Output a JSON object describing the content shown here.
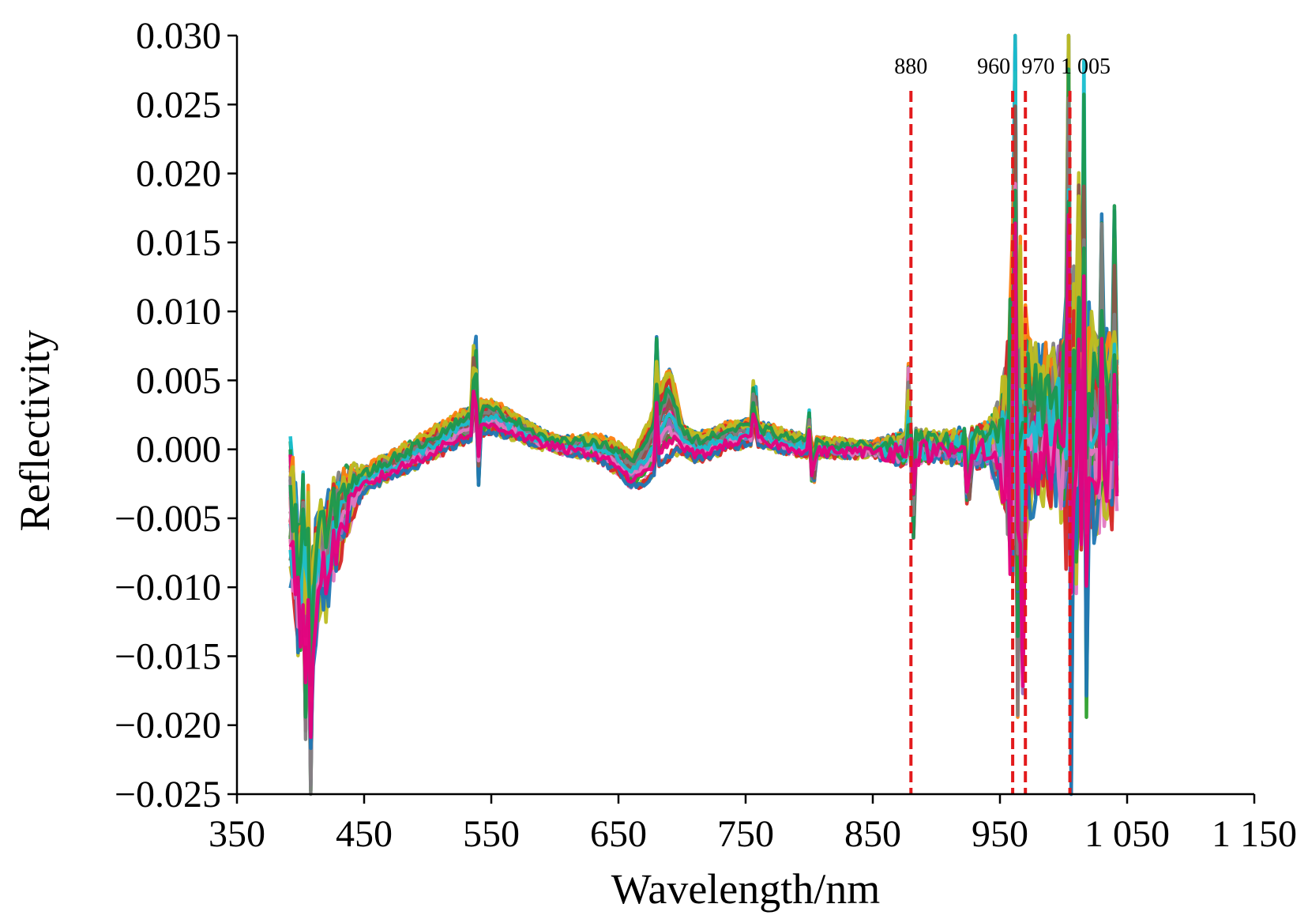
{
  "chart_data": {
    "type": "line",
    "xlabel": "Wavelength/nm",
    "ylabel": "Reflectivity",
    "xlim": [
      350,
      1150
    ],
    "ylim": [
      -0.025,
      0.03
    ],
    "xticks": [
      350,
      450,
      550,
      650,
      750,
      850,
      950,
      1050,
      1150
    ],
    "xtick_labels": [
      "350",
      "450",
      "550",
      "650",
      "750",
      "850",
      "950",
      "1 050",
      "1 150"
    ],
    "yticks": [
      -0.025,
      -0.02,
      -0.015,
      -0.01,
      -0.005,
      0.0,
      0.005,
      0.01,
      0.015,
      0.02,
      0.025,
      0.03
    ],
    "ytick_labels": [
      "−0.025",
      "−0.020",
      "−0.015",
      "−0.010",
      "−0.005",
      "0.000",
      "0.005",
      "0.010",
      "0.015",
      "0.020",
      "0.025",
      "0.030"
    ],
    "grid": false,
    "wavelength_range": [
      392,
      1043
    ],
    "marker_wavelengths": [
      880,
      960,
      970,
      1005
    ],
    "marker_labels": [
      "880",
      "960",
      "970",
      "1 005"
    ],
    "marker_color": "#e31a1c",
    "series_palette": [
      "#1f77b4",
      "#ff7f0e",
      "#2ca02c",
      "#d62728",
      "#9467bd",
      "#8c564b",
      "#e377c2",
      "#7f7f7f",
      "#bcbd22",
      "#17becf",
      "#1a9850",
      "#e6007e"
    ],
    "base_curve": [
      [
        392,
        -0.004
      ],
      [
        396,
        -0.008
      ],
      [
        400,
        -0.01
      ],
      [
        405,
        -0.007
      ],
      [
        410,
        -0.011
      ],
      [
        415,
        -0.007
      ],
      [
        420,
        -0.008
      ],
      [
        425,
        -0.006
      ],
      [
        430,
        -0.005
      ],
      [
        440,
        -0.003
      ],
      [
        450,
        -0.0022
      ],
      [
        470,
        -0.0012
      ],
      [
        490,
        -0.0003
      ],
      [
        510,
        0.0007
      ],
      [
        525,
        0.0015
      ],
      [
        540,
        0.0022
      ],
      [
        550,
        0.0024
      ],
      [
        560,
        0.002
      ],
      [
        570,
        0.0016
      ],
      [
        585,
        0.0009
      ],
      [
        600,
        0.0004
      ],
      [
        615,
        0.0002
      ],
      [
        630,
        0.0002
      ],
      [
        640,
        -0.0002
      ],
      [
        650,
        -0.0006
      ],
      [
        655,
        -0.0011
      ],
      [
        660,
        -0.0016
      ],
      [
        665,
        -0.0012
      ],
      [
        672,
        -0.0004
      ],
      [
        680,
        0.001
      ],
      [
        685,
        0.002
      ],
      [
        690,
        0.0026
      ],
      [
        695,
        0.002
      ],
      [
        700,
        0.0008
      ],
      [
        710,
        0.0002
      ],
      [
        720,
        0.0003
      ],
      [
        735,
        0.0009
      ],
      [
        750,
        0.0012
      ],
      [
        765,
        0.001
      ],
      [
        780,
        0.0006
      ],
      [
        800,
        0.0002
      ],
      [
        820,
        0.0001
      ],
      [
        850,
        0.0
      ],
      [
        880,
        0.0001
      ],
      [
        900,
        0.0002
      ],
      [
        930,
        0.0002
      ],
      [
        950,
        0.0004
      ],
      [
        960,
        0.001
      ],
      [
        980,
        0.0015
      ],
      [
        1000,
        0.002
      ],
      [
        1020,
        0.0018
      ],
      [
        1043,
        0.0012
      ]
    ],
    "variation_amplitude": [
      [
        392,
        0.003
      ],
      [
        430,
        0.0025
      ],
      [
        450,
        0.0007
      ],
      [
        540,
        0.0012
      ],
      [
        600,
        0.0004
      ],
      [
        660,
        0.0012
      ],
      [
        690,
        0.0035
      ],
      [
        700,
        0.001
      ],
      [
        750,
        0.0008
      ],
      [
        850,
        0.0003
      ],
      [
        940,
        0.0008
      ],
      [
        955,
        0.003
      ],
      [
        965,
        0.01
      ],
      [
        975,
        0.004
      ],
      [
        1000,
        0.004
      ],
      [
        1007,
        0.008
      ],
      [
        1020,
        0.006
      ],
      [
        1043,
        0.004
      ]
    ],
    "noise_amplitude": [
      [
        392,
        0.0035
      ],
      [
        430,
        0.0015
      ],
      [
        450,
        0.0004
      ],
      [
        650,
        0.0003
      ],
      [
        850,
        0.0004
      ],
      [
        880,
        0.0012
      ],
      [
        900,
        0.0006
      ],
      [
        950,
        0.0015
      ],
      [
        960,
        0.009
      ],
      [
        972,
        0.003
      ],
      [
        990,
        0.0025
      ],
      [
        1005,
        0.007
      ],
      [
        1020,
        0.004
      ],
      [
        1043,
        0.003
      ]
    ],
    "spikes": [
      [
        537,
        0.0045
      ],
      [
        540,
        -0.0045
      ],
      [
        680,
        0.0055
      ],
      [
        757,
        0.003
      ],
      [
        800,
        0.0025
      ],
      [
        803,
        -0.0022
      ],
      [
        878,
        0.006
      ],
      [
        882,
        -0.006
      ],
      [
        925,
        -0.0035
      ],
      [
        962,
        0.026
      ],
      [
        964,
        -0.015
      ],
      [
        968,
        -0.016
      ],
      [
        1004,
        0.024
      ],
      [
        1006,
        -0.0215
      ],
      [
        1012,
        0.014
      ],
      [
        1016,
        0.019
      ],
      [
        1018,
        -0.014
      ],
      [
        1030,
        0.01
      ],
      [
        1040,
        0.015
      ],
      [
        408,
        -0.016
      ],
      [
        404,
        -0.013
      ],
      [
        402,
        0.0035
      ]
    ]
  }
}
